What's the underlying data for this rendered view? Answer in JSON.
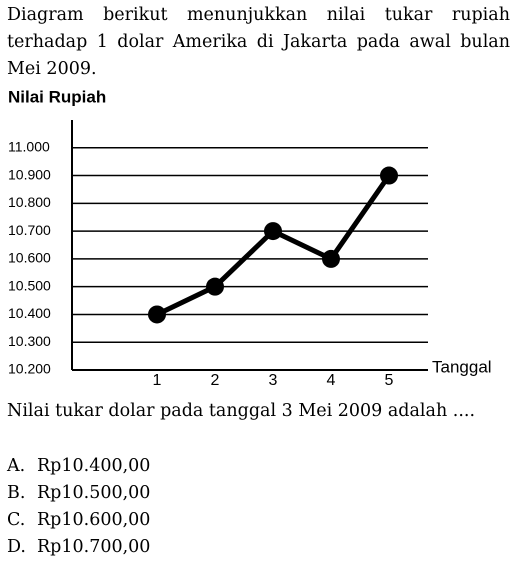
{
  "intro": "Diagram berikut menunjukkan nilai tukar rupiah terhadap 1 dolar Amerika di Jakarta pada awal bulan Mei 2009.",
  "chart_data": {
    "type": "line",
    "y_label": "Nilai Rupiah",
    "x_label": "Tanggal",
    "categories": [
      "1",
      "2",
      "3",
      "4",
      "5"
    ],
    "values": [
      10400,
      10500,
      10700,
      10600,
      10900
    ],
    "color": "#000000",
    "grid": true,
    "ylim": [
      10200,
      11100
    ],
    "yticks": [
      {
        "value": 10200,
        "label": "10.200"
      },
      {
        "value": 10300,
        "label": "10.300"
      },
      {
        "value": 10400,
        "label": "10.400"
      },
      {
        "value": 10500,
        "label": "10.500"
      },
      {
        "value": 10600,
        "label": "10.600"
      },
      {
        "value": 10700,
        "label": "10.700"
      },
      {
        "value": 10800,
        "label": "10.800"
      },
      {
        "value": 10900,
        "label": "10.900"
      },
      {
        "value": 11000,
        "label": "11.000"
      }
    ]
  },
  "question": "Nilai tukar dolar pada tanggal 3 Mei 2009 adalah ....",
  "options": [
    {
      "label": "A.",
      "text": "Rp10.400,00"
    },
    {
      "label": "B.",
      "text": "Rp10.500,00"
    },
    {
      "label": "C.",
      "text": "Rp10.600,00"
    },
    {
      "label": "D.",
      "text": "Rp10.700,00"
    }
  ]
}
